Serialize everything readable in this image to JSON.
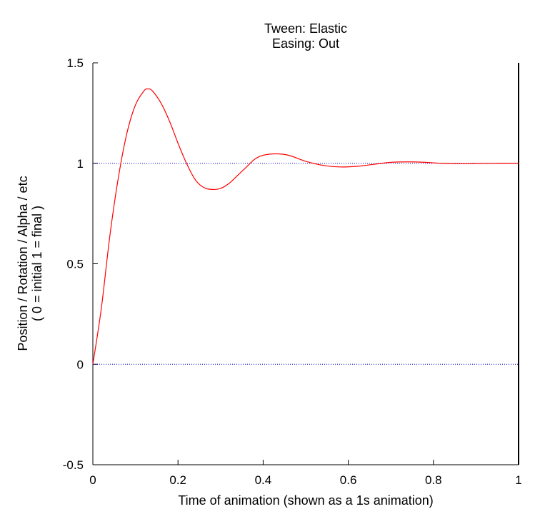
{
  "chart_data": {
    "type": "line",
    "title": "Tween: Elastic",
    "subtitle": "Easing: Out",
    "xlabel": "Time of animation (shown as a 1s animation)",
    "ylabel": "Position / Rotation / Alpha / etc",
    "ylabel2": "( 0 = initial   1 = final )",
    "xlim": [
      0,
      1
    ],
    "ylim": [
      -0.5,
      1.5
    ],
    "xticks": [
      0,
      0.2,
      0.4,
      0.6,
      0.8,
      1
    ],
    "yticks": [
      -0.5,
      0,
      0.5,
      1,
      1.5
    ],
    "xtick_labels": [
      "0",
      "0.2",
      "0.4",
      "0.6",
      "0.8",
      "1"
    ],
    "ytick_labels": [
      "-0.5",
      "0",
      "0.5",
      "1",
      "1.5"
    ],
    "reference_lines": [
      0,
      1
    ],
    "grid": false,
    "colors": {
      "curve": "#ff0000",
      "reference": "#0000cc",
      "axis": "#000000",
      "end_marker": "#000000"
    },
    "series": [
      {
        "x": [
          0,
          0.02,
          0.04,
          0.06,
          0.08,
          0.1,
          0.12,
          0.13,
          0.14,
          0.16,
          0.18,
          0.2,
          0.22,
          0.24,
          0.26,
          0.28,
          0.3,
          0.32,
          0.34,
          0.36,
          0.38,
          0.4,
          0.43,
          0.46,
          0.5,
          0.54,
          0.58,
          0.62,
          0.66,
          0.7,
          0.74,
          0.78,
          0.82,
          0.86,
          0.9,
          0.95,
          1
        ],
        "y": [
          0,
          0.28,
          0.64,
          0.93,
          1.15,
          1.29,
          1.36,
          1.37,
          1.36,
          1.3,
          1.21,
          1.1,
          1.0,
          0.92,
          0.88,
          0.87,
          0.875,
          0.9,
          0.94,
          0.98,
          1.02,
          1.04,
          1.047,
          1.04,
          1.01,
          0.99,
          0.982,
          0.985,
          0.995,
          1.005,
          1.007,
          1.005,
          1.0,
          0.998,
          0.999,
          1.0,
          1.0
        ]
      }
    ]
  }
}
